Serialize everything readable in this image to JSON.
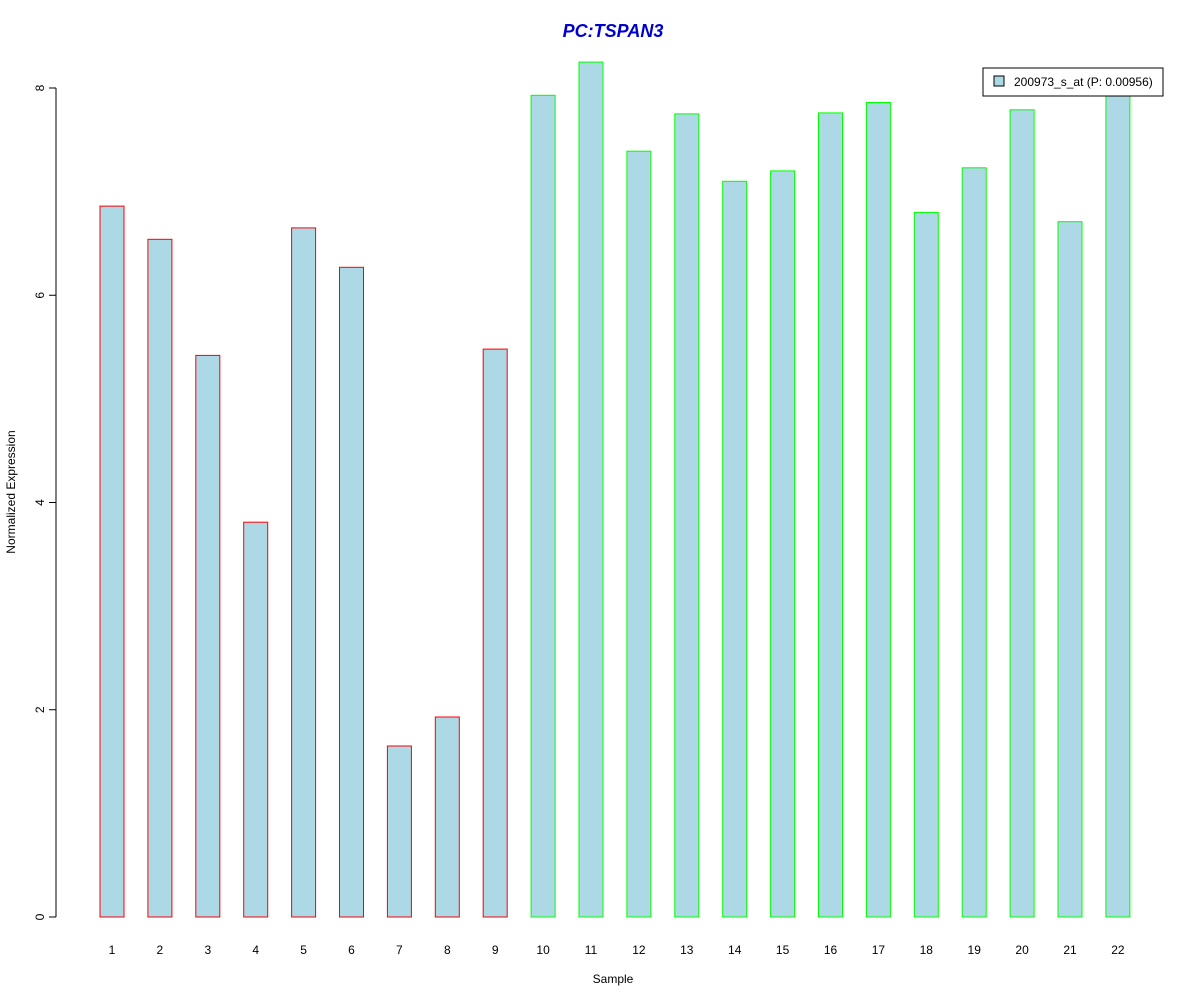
{
  "chart_data": {
    "type": "bar",
    "title": "PC:TSPAN3",
    "title_color": "#0000CD",
    "xlabel": "Sample",
    "ylabel": "Normalized Expression",
    "ylim": [
      0,
      8.3
    ],
    "yticks": [
      0,
      2,
      4,
      6,
      8
    ],
    "grid": false,
    "legend_position": "top-right",
    "fill_color": "#ADD8E6",
    "categories": [
      "1",
      "2",
      "3",
      "4",
      "5",
      "6",
      "7",
      "8",
      "9",
      "10",
      "11",
      "12",
      "13",
      "14",
      "15",
      "16",
      "17",
      "18",
      "19",
      "20",
      "21",
      "22"
    ],
    "series": [
      {
        "name": "200973_s_at (P: 0.00956)",
        "values": [
          6.86,
          6.54,
          5.42,
          3.81,
          6.65,
          6.27,
          1.65,
          1.93,
          5.48,
          7.93,
          8.25,
          7.39,
          7.75,
          7.1,
          7.2,
          7.76,
          7.86,
          6.8,
          7.23,
          7.79,
          6.71,
          7.95
        ]
      }
    ],
    "border_colors": [
      "#FF0000",
      "#FF0000",
      "#FF0000",
      "#FF0000",
      "#FF0000",
      "#FF0000",
      "#FF0000",
      "#FF0000",
      "#FF0000",
      "#00FF00",
      "#00FF00",
      "#00FF00",
      "#00FF00",
      "#00FF00",
      "#00FF00",
      "#00FF00",
      "#00FF00",
      "#00FF00",
      "#00FF00",
      "#00FF00",
      "#00FF00",
      "#00FF00"
    ]
  }
}
